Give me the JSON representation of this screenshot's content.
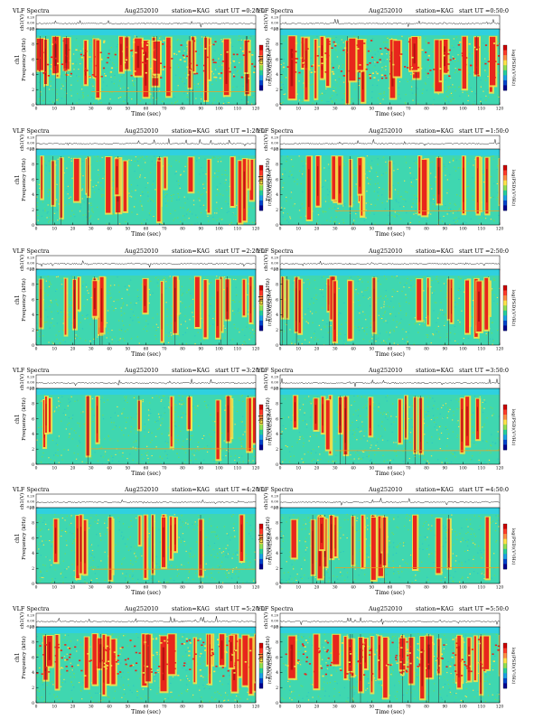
{
  "header_labels": {
    "instrument": "VLF Spectra",
    "date": "Aug252010",
    "station": "station=KAG",
    "start_prefix": "start  UT ="
  },
  "axis_labels": {
    "waveform_ylabel": "ch1(V)",
    "freq_ylabel": "Frequency  (kHz)",
    "channel_label": "ch1",
    "xlabel": "Time  (sec)",
    "colorbar_label": "log(PSD)(V²/Hz)"
  },
  "colorbar_colors": [
    "#cc0000",
    "#ff3a2a",
    "#ff8c42",
    "#ffe34a",
    "#8fe052",
    "#25cf9a",
    "#1aa0e6",
    "#0044cc",
    "#000090"
  ],
  "spectrogram_colors": {
    "background": "#3fd7b0",
    "band_low": "#6fdc5a",
    "band_mid": "#f4e24a",
    "burst": "#e8261c",
    "burst_core": "#b81210",
    "top_strip": "#2fd0e0",
    "dark_line": "#333333"
  },
  "chart_data": [
    {
      "type": "heatmap",
      "panel": "left-1",
      "start_time": "0:20:0",
      "xlim": [
        0,
        120
      ],
      "ylim_freq_khz": [
        0,
        10
      ],
      "ylim_wave_v": [
        -0.2,
        0.2
      ],
      "x_ticks": [
        "0",
        "10",
        "20",
        "30",
        "40",
        "50",
        "60",
        "70",
        "80",
        "90",
        "100",
        "110",
        "120"
      ],
      "y_ticks": [
        "0",
        "2",
        "4",
        "6",
        "8",
        "10"
      ],
      "wave_ticks": [
        "0.20",
        "0.00",
        "-0.20"
      ],
      "activity": "high"
    },
    {
      "type": "heatmap",
      "panel": "right-1",
      "start_time": "0:50:0",
      "xlim": [
        0,
        120
      ],
      "ylim_freq_khz": [
        0,
        10
      ],
      "ylim_wave_v": [
        -0.2,
        0.2
      ],
      "x_ticks": [
        "0",
        "10",
        "20",
        "30",
        "40",
        "50",
        "60",
        "70",
        "80",
        "90",
        "100",
        "110",
        "120"
      ],
      "y_ticks": [
        "0",
        "2",
        "4",
        "6",
        "8",
        "10"
      ],
      "wave_ticks": [
        "0.20",
        "0.00",
        "-0.20"
      ],
      "activity": "high"
    },
    {
      "type": "heatmap",
      "panel": "left-2",
      "start_time": "1:20:0",
      "xlim": [
        0,
        120
      ],
      "ylim_freq_khz": [
        0,
        10
      ],
      "ylim_wave_v": [
        -0.2,
        0.2
      ],
      "x_ticks": [
        "0",
        "10",
        "20",
        "30",
        "40",
        "50",
        "60",
        "70",
        "80",
        "90",
        "100",
        "110",
        "120"
      ],
      "y_ticks": [
        "0",
        "2",
        "4",
        "6",
        "8",
        "10"
      ],
      "wave_ticks": [
        "0.20",
        "0.00",
        "-0.20"
      ],
      "activity": "medium"
    },
    {
      "type": "heatmap",
      "panel": "right-2",
      "start_time": "1:50:0",
      "xlim": [
        0,
        120
      ],
      "ylim_freq_khz": [
        0,
        10
      ],
      "ylim_wave_v": [
        -0.2,
        0.2
      ],
      "x_ticks": [
        "0",
        "10",
        "20",
        "30",
        "40",
        "50",
        "60",
        "70",
        "80",
        "90",
        "100",
        "110",
        "120"
      ],
      "y_ticks": [
        "0",
        "2",
        "4",
        "6",
        "8",
        "10"
      ],
      "wave_ticks": [
        "0.20",
        "0.00",
        "-0.20"
      ],
      "activity": "medium"
    },
    {
      "type": "heatmap",
      "panel": "left-3",
      "start_time": "2:20:0",
      "xlim": [
        0,
        120
      ],
      "ylim_freq_khz": [
        0,
        10
      ],
      "ylim_wave_v": [
        -0.2,
        0.2
      ],
      "x_ticks": [
        "0",
        "10",
        "20",
        "30",
        "40",
        "50",
        "60",
        "70",
        "80",
        "90",
        "100",
        "110",
        "120"
      ],
      "y_ticks": [
        "0",
        "2",
        "4",
        "6",
        "8",
        "10"
      ],
      "wave_ticks": [
        "0.20",
        "0.00",
        "-0.20"
      ],
      "activity": "medium"
    },
    {
      "type": "heatmap",
      "panel": "right-3",
      "start_time": "2:50:0",
      "xlim": [
        0,
        120
      ],
      "ylim_freq_khz": [
        0,
        10
      ],
      "ylim_wave_v": [
        -0.2,
        0.2
      ],
      "x_ticks": [
        "0",
        "10",
        "20",
        "30",
        "40",
        "50",
        "60",
        "70",
        "80",
        "90",
        "100",
        "110",
        "120"
      ],
      "y_ticks": [
        "0",
        "2",
        "4",
        "6",
        "8",
        "10"
      ],
      "wave_ticks": [
        "0.20",
        "0.00",
        "-0.20"
      ],
      "activity": "medium"
    },
    {
      "type": "heatmap",
      "panel": "left-4",
      "start_time": "3:20:0",
      "xlim": [
        0,
        120
      ],
      "ylim_freq_khz": [
        0,
        10
      ],
      "ylim_wave_v": [
        -0.2,
        0.2
      ],
      "x_ticks": [
        "0",
        "10",
        "20",
        "30",
        "40",
        "50",
        "60",
        "70",
        "80",
        "90",
        "100",
        "110",
        "120"
      ],
      "y_ticks": [
        "0",
        "2",
        "4",
        "6",
        "8",
        "10"
      ],
      "wave_ticks": [
        "0.20",
        "0.00",
        "-0.20"
      ],
      "activity": "low"
    },
    {
      "type": "heatmap",
      "panel": "right-4",
      "start_time": "3:50:0",
      "xlim": [
        0,
        120
      ],
      "ylim_freq_khz": [
        0,
        10
      ],
      "ylim_wave_v": [
        -0.2,
        0.2
      ],
      "x_ticks": [
        "0",
        "10",
        "20",
        "30",
        "40",
        "50",
        "60",
        "70",
        "80",
        "90",
        "100",
        "110",
        "120"
      ],
      "y_ticks": [
        "0",
        "2",
        "4",
        "6",
        "8",
        "10"
      ],
      "wave_ticks": [
        "0.20",
        "0.00",
        "-0.20"
      ],
      "activity": "low"
    },
    {
      "type": "heatmap",
      "panel": "left-5",
      "start_time": "4:20:0",
      "xlim": [
        0,
        120
      ],
      "ylim_freq_khz": [
        0,
        10
      ],
      "ylim_wave_v": [
        -0.2,
        0.2
      ],
      "x_ticks": [
        "0",
        "10",
        "20",
        "30",
        "40",
        "50",
        "60",
        "70",
        "80",
        "90",
        "100",
        "110",
        "120"
      ],
      "y_ticks": [
        "0",
        "2",
        "4",
        "6",
        "8",
        "10"
      ],
      "wave_ticks": [
        "0.20",
        "0.00",
        "-0.20"
      ],
      "activity": "low"
    },
    {
      "type": "heatmap",
      "panel": "right-5",
      "start_time": "4:50:0",
      "xlim": [
        0,
        120
      ],
      "ylim_freq_khz": [
        0,
        10
      ],
      "ylim_wave_v": [
        -0.2,
        0.2
      ],
      "x_ticks": [
        "0",
        "10",
        "20",
        "30",
        "40",
        "50",
        "60",
        "70",
        "80",
        "90",
        "100",
        "110",
        "120"
      ],
      "y_ticks": [
        "0",
        "2",
        "4",
        "6",
        "8",
        "10"
      ],
      "wave_ticks": [
        "0.20",
        "0.00",
        "-0.20"
      ],
      "activity": "medium"
    },
    {
      "type": "heatmap",
      "panel": "left-6",
      "start_time": "5:20:0",
      "xlim": [
        0,
        120
      ],
      "ylim_freq_khz": [
        0,
        10
      ],
      "ylim_wave_v": [
        -0.2,
        0.2
      ],
      "x_ticks": [
        "0",
        "10",
        "20",
        "30",
        "40",
        "50",
        "60",
        "70",
        "80",
        "90",
        "100",
        "110",
        "120"
      ],
      "y_ticks": [
        "0",
        "2",
        "4",
        "6",
        "8",
        "10"
      ],
      "wave_ticks": [
        "0.20",
        "0.00",
        "-0.20"
      ],
      "activity": "high"
    },
    {
      "type": "heatmap",
      "panel": "right-6",
      "start_time": "5:50:0",
      "xlim": [
        0,
        120
      ],
      "ylim_freq_khz": [
        0,
        10
      ],
      "ylim_wave_v": [
        -0.2,
        0.2
      ],
      "x_ticks": [
        "0",
        "10",
        "20",
        "30",
        "40",
        "50",
        "60",
        "70",
        "80",
        "90",
        "100",
        "110",
        "120"
      ],
      "y_ticks": [
        "0",
        "2",
        "4",
        "6",
        "8",
        "10"
      ],
      "wave_ticks": [
        "0.20",
        "0.00",
        "-0.20"
      ],
      "activity": "high"
    }
  ]
}
